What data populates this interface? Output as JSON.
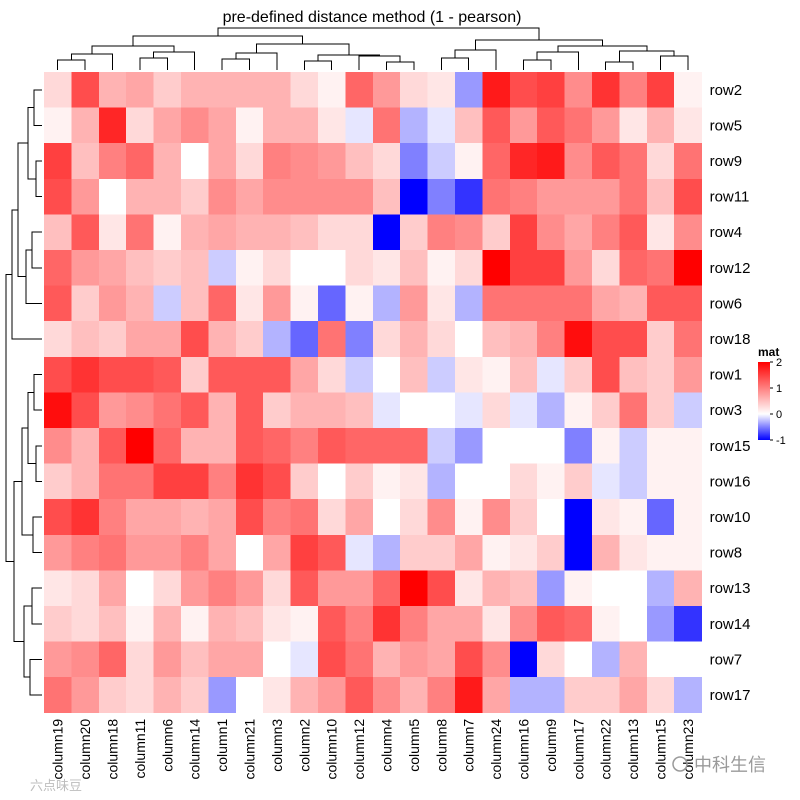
{
  "chart_data": {
    "type": "heatmap",
    "title": "pre-defined distance method (1 - pearson)",
    "rows": [
      "row2",
      "row5",
      "row9",
      "row11",
      "row4",
      "row12",
      "row6",
      "row18",
      "row1",
      "row3",
      "row15",
      "row16",
      "row10",
      "row8",
      "row13",
      "row14",
      "row7",
      "row17"
    ],
    "columns": [
      "column19",
      "column20",
      "column18",
      "column11",
      "column6",
      "column14",
      "column1",
      "column21",
      "column3",
      "column2",
      "column10",
      "column12",
      "column4",
      "column5",
      "column8",
      "column7",
      "column24",
      "column16",
      "column9",
      "column17",
      "column22",
      "column13",
      "column15",
      "column23"
    ],
    "values": [
      [
        0.3,
        1.4,
        0.6,
        0.7,
        0.4,
        0.6,
        0.6,
        0.6,
        0.6,
        0.3,
        0.1,
        1.2,
        0.8,
        0.3,
        0.2,
        -0.4,
        1.8,
        1.4,
        1.5,
        0.9,
        1.6,
        1.0,
        1.5,
        0.1
      ],
      [
        0.1,
        0.6,
        1.7,
        0.3,
        0.7,
        0.9,
        0.7,
        0.1,
        0.6,
        0.6,
        0.2,
        -0.1,
        1.1,
        -0.3,
        -0.1,
        0.5,
        1.3,
        0.8,
        1.3,
        1.1,
        0.8,
        0.2,
        0.6,
        0.2
      ],
      [
        1.5,
        0.5,
        1.0,
        1.2,
        0.6,
        0.0,
        0.7,
        0.3,
        1.0,
        0.9,
        0.8,
        0.5,
        0.3,
        -0.5,
        -0.2,
        0.1,
        1.2,
        1.7,
        1.8,
        0.9,
        1.3,
        1.1,
        0.3,
        1.1
      ],
      [
        1.4,
        0.8,
        0.0,
        0.6,
        0.6,
        0.4,
        0.9,
        0.7,
        0.9,
        0.9,
        0.9,
        0.9,
        0.5,
        -1.0,
        -0.5,
        -0.8,
        1.1,
        1.0,
        0.8,
        0.8,
        0.8,
        1.1,
        0.5,
        1.4
      ],
      [
        0.5,
        1.3,
        0.2,
        1.1,
        0.1,
        0.6,
        0.7,
        0.6,
        0.6,
        0.5,
        0.3,
        0.3,
        -1.0,
        0.4,
        1.0,
        0.9,
        0.4,
        1.5,
        0.9,
        0.7,
        1.0,
        1.3,
        0.2,
        0.9
      ],
      [
        1.2,
        0.8,
        0.7,
        0.5,
        0.4,
        0.5,
        -0.2,
        0.1,
        0.3,
        0.0,
        0.0,
        0.3,
        0.2,
        0.5,
        0.1,
        0.3,
        2.0,
        1.5,
        1.5,
        0.8,
        0.3,
        1.2,
        1.1,
        2.0
      ],
      [
        1.3,
        0.4,
        0.8,
        0.6,
        -0.2,
        0.5,
        1.2,
        0.2,
        0.8,
        0.1,
        -0.6,
        0.1,
        -0.3,
        0.8,
        0.2,
        -0.3,
        1.1,
        1.1,
        1.1,
        1.1,
        0.7,
        0.6,
        1.3,
        1.3
      ],
      [
        0.3,
        0.5,
        0.4,
        0.7,
        0.7,
        1.4,
        0.6,
        0.4,
        -0.3,
        -0.6,
        1.1,
        -0.5,
        0.3,
        0.6,
        0.3,
        0.0,
        0.5,
        0.6,
        1.0,
        1.9,
        1.4,
        1.4,
        0.4,
        1.1
      ],
      [
        1.4,
        1.6,
        1.4,
        1.4,
        1.3,
        0.4,
        1.3,
        1.3,
        1.3,
        0.7,
        0.3,
        -0.2,
        0.0,
        0.5,
        -0.2,
        0.2,
        0.1,
        0.5,
        -0.1,
        0.4,
        1.4,
        0.5,
        0.4,
        0.8
      ],
      [
        1.9,
        1.4,
        0.8,
        0.9,
        1.1,
        1.3,
        0.6,
        1.3,
        0.4,
        0.6,
        0.6,
        0.5,
        -0.1,
        0.0,
        0.0,
        -0.1,
        0.3,
        -0.1,
        -0.3,
        0.1,
        0.4,
        1.1,
        0.4,
        -0.2
      ],
      [
        0.9,
        0.6,
        1.3,
        2.0,
        1.2,
        0.6,
        0.6,
        1.3,
        1.2,
        1.0,
        1.3,
        1.2,
        1.2,
        1.2,
        -0.2,
        -0.4,
        0.0,
        0.0,
        0.0,
        -0.5,
        0.1,
        -0.2,
        0.1,
        0.1
      ],
      [
        0.4,
        0.6,
        1.1,
        1.1,
        1.5,
        1.5,
        1.0,
        1.6,
        1.4,
        0.4,
        0.0,
        0.4,
        0.1,
        0.2,
        -0.3,
        0.0,
        0.0,
        0.3,
        0.1,
        0.4,
        -0.1,
        -0.2,
        0.1,
        0.1
      ],
      [
        1.4,
        1.6,
        1.0,
        0.7,
        0.7,
        0.6,
        0.7,
        1.4,
        1.0,
        1.1,
        0.3,
        0.7,
        0.0,
        0.3,
        0.9,
        0.1,
        0.9,
        0.4,
        0.0,
        -1.0,
        0.2,
        0.1,
        -0.6,
        0.1
      ],
      [
        0.8,
        1.0,
        1.1,
        0.8,
        0.8,
        1.0,
        0.7,
        0.0,
        0.7,
        1.5,
        1.3,
        -0.1,
        -0.3,
        0.4,
        0.4,
        0.7,
        0.1,
        0.2,
        0.4,
        -1.0,
        0.6,
        0.2,
        0.1,
        0.1
      ],
      [
        0.2,
        0.3,
        0.7,
        0.0,
        0.3,
        0.8,
        1.0,
        0.8,
        0.3,
        1.3,
        0.8,
        0.8,
        1.2,
        2.0,
        1.4,
        0.2,
        0.6,
        0.5,
        -0.4,
        0.1,
        0.0,
        0.0,
        -0.3,
        0.6
      ],
      [
        0.4,
        0.3,
        0.5,
        0.1,
        0.6,
        0.1,
        0.6,
        0.5,
        0.2,
        0.1,
        1.3,
        1.0,
        1.6,
        1.0,
        0.7,
        0.7,
        0.2,
        0.9,
        1.3,
        1.2,
        0.1,
        0.0,
        -0.4,
        -0.8
      ],
      [
        0.8,
        0.9,
        1.2,
        0.3,
        0.8,
        0.5,
        0.7,
        0.7,
        0.0,
        -0.1,
        1.4,
        1.1,
        0.6,
        0.8,
        0.7,
        1.4,
        0.9,
        -1.0,
        0.3,
        0.0,
        -0.3,
        0.6,
        0.0,
        0.0
      ],
      [
        1.1,
        0.8,
        0.4,
        0.3,
        0.6,
        0.4,
        -0.4,
        0.0,
        0.2,
        0.6,
        0.8,
        1.3,
        0.9,
        0.6,
        1.0,
        1.8,
        0.7,
        -0.3,
        -0.3,
        0.4,
        0.4,
        0.7,
        0.3,
        -0.3
      ]
    ],
    "color_scale": {
      "low": -1,
      "mid": 0,
      "high": 2,
      "low_color": "#0000ff",
      "mid_color": "#ffffff",
      "high_color": "#ff0000"
    },
    "legend": {
      "title": "mat",
      "ticks": [
        2,
        1,
        0,
        -1
      ],
      "position": "right"
    }
  },
  "watermarks": {
    "left": "六点味豆",
    "right": "中科生信"
  }
}
